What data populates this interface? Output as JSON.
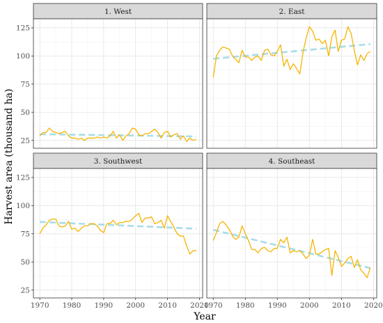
{
  "chart_data": {
    "type": "line",
    "xlabel": "Year",
    "ylabel": "Harvest area (thousand ha)",
    "xlim": [
      1968,
      2021
    ],
    "ylim": [
      18,
      133
    ],
    "x_ticks": [
      1970,
      1980,
      1990,
      2000,
      2010,
      2020
    ],
    "y_ticks": [
      25,
      50,
      75,
      100,
      125
    ],
    "grid": true,
    "colors": {
      "observed": "#F5B400",
      "trend": "#A8DCE8",
      "strip": "#d9d9d9"
    },
    "panels": [
      {
        "title": "1. West",
        "years": [
          1970,
          1971,
          1972,
          1973,
          1974,
          1975,
          1976,
          1977,
          1978,
          1979,
          1980,
          1981,
          1982,
          1983,
          1984,
          1985,
          1986,
          1987,
          1988,
          1989,
          1990,
          1991,
          1992,
          1993,
          1994,
          1995,
          1996,
          1997,
          1998,
          1999,
          2000,
          2001,
          2002,
          2003,
          2004,
          2005,
          2006,
          2007,
          2008,
          2009,
          2010,
          2011,
          2012,
          2013,
          2014,
          2015,
          2016,
          2017,
          2018,
          2019
        ],
        "values": [
          29,
          32,
          32,
          36,
          33,
          32,
          31,
          32,
          33,
          29,
          27,
          27,
          26,
          27,
          25,
          27,
          27,
          27,
          28,
          27,
          28,
          27,
          29,
          33,
          27,
          30,
          25,
          29,
          31,
          36,
          35,
          30,
          29,
          31,
          31,
          33,
          35,
          32,
          27,
          32,
          33,
          28,
          30,
          31,
          26,
          29,
          24,
          27,
          25,
          26
        ],
        "trend": [
          [
            1970,
            30.5
          ],
          [
            2019,
            28.5
          ]
        ]
      },
      {
        "title": "2. East",
        "years": [
          1970,
          1971,
          1972,
          1973,
          1974,
          1975,
          1976,
          1977,
          1978,
          1979,
          1980,
          1981,
          1982,
          1983,
          1984,
          1985,
          1986,
          1987,
          1988,
          1989,
          1990,
          1991,
          1992,
          1993,
          1994,
          1995,
          1996,
          1997,
          1998,
          1999,
          2000,
          2001,
          2002,
          2003,
          2004,
          2005,
          2006,
          2007,
          2008,
          2009,
          2010,
          2011,
          2012,
          2013,
          2014,
          2015,
          2016,
          2017,
          2018,
          2019
        ],
        "values": [
          81,
          100,
          105,
          108,
          107,
          106,
          100,
          97,
          94,
          105,
          99,
          99,
          96,
          99,
          100,
          96,
          105,
          106,
          101,
          100,
          104,
          110,
          91,
          97,
          88,
          93,
          89,
          84,
          103,
          116,
          126,
          122,
          114,
          115,
          111,
          114,
          100,
          117,
          123,
          104,
          114,
          115,
          126,
          120,
          105,
          92,
          101,
          96,
          102,
          104
        ],
        "trend": [
          [
            1970,
            97.5
          ],
          [
            2019,
            110.5
          ]
        ]
      },
      {
        "title": "3. Southwest",
        "years": [
          1970,
          1971,
          1972,
          1973,
          1974,
          1975,
          1976,
          1977,
          1978,
          1979,
          1980,
          1981,
          1982,
          1983,
          1984,
          1985,
          1986,
          1987,
          1988,
          1989,
          1990,
          1991,
          1992,
          1993,
          1994,
          1995,
          1996,
          1997,
          1998,
          1999,
          2000,
          2001,
          2002,
          2003,
          2004,
          2005,
          2006,
          2007,
          2008,
          2009,
          2010,
          2011,
          2012,
          2013,
          2014,
          2015,
          2016,
          2017,
          2018,
          2019
        ],
        "values": [
          75,
          80,
          83,
          87,
          88,
          88,
          82,
          81,
          82,
          86,
          79,
          80,
          77,
          80,
          82,
          82,
          84,
          84,
          82,
          78,
          76,
          84,
          84,
          87,
          83,
          85,
          85,
          86,
          86,
          88,
          91,
          93,
          85,
          89,
          89,
          90,
          84,
          85,
          87,
          80,
          91,
          86,
          81,
          75,
          73,
          73,
          64,
          57,
          60,
          60
        ],
        "trend": [
          [
            1970,
            85.5
          ],
          [
            2019,
            79.5
          ]
        ]
      },
      {
        "title": "4. Southeast",
        "years": [
          1970,
          1971,
          1972,
          1973,
          1974,
          1975,
          1976,
          1977,
          1978,
          1979,
          1980,
          1981,
          1982,
          1983,
          1984,
          1985,
          1986,
          1987,
          1988,
          1989,
          1990,
          1991,
          1992,
          1993,
          1994,
          1995,
          1996,
          1997,
          1998,
          1999,
          2000,
          2001,
          2002,
          2003,
          2004,
          2005,
          2006,
          2007,
          2008,
          2009,
          2010,
          2011,
          2012,
          2013,
          2014,
          2015,
          2016,
          2017,
          2018,
          2019
        ],
        "values": [
          69,
          76,
          84,
          86,
          83,
          79,
          73,
          70,
          72,
          82,
          75,
          69,
          61,
          61,
          58,
          62,
          63,
          60,
          59,
          62,
          62,
          70,
          67,
          72,
          58,
          60,
          59,
          60,
          57,
          53,
          56,
          70,
          57,
          57,
          59,
          61,
          62,
          38,
          60,
          54,
          46,
          49,
          53,
          55,
          45,
          52,
          43,
          40,
          36,
          45
        ],
        "trend": [
          [
            1970,
            78.5
          ],
          [
            2019,
            44.5
          ]
        ]
      }
    ]
  }
}
